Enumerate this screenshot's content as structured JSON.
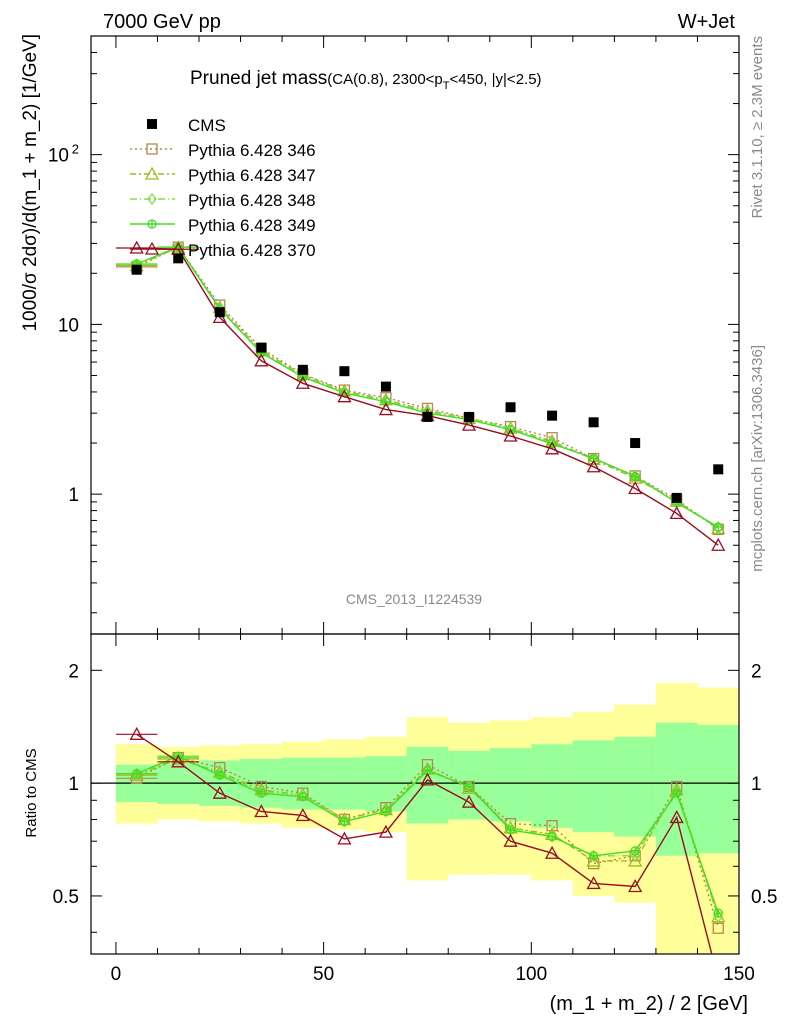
{
  "header": {
    "left": "7000 GeV pp",
    "right": "W+Jet"
  },
  "side_labels": {
    "rivet": "Rivet 3.1.10, ≥ 2.3M events",
    "mcplots": "mcplots.cern.ch [arXiv:1306.3436]"
  },
  "plot_title": {
    "main": "Pruned jet mass",
    "cut_a": "(CA(0.8), 2300<p",
    "cut_sub": "T",
    "cut_b": "<450, |y|<2.5)"
  },
  "watermark": "CMS_2013_I1224539",
  "chart_data": [
    {
      "type": "line",
      "panel": "main",
      "ylabel": "1000/σ 2dσ)/d(m_1 + m_2) [1/GeV]",
      "yscale": "log",
      "ylim": [
        0.15,
        500
      ],
      "xlim": [
        -6,
        150
      ],
      "yticks": [
        {
          "v": 1,
          "label": "1"
        },
        {
          "v": 10,
          "label": "10"
        },
        {
          "v": 100,
          "label": "10",
          "sup": "2"
        }
      ],
      "xticks": [
        0,
        50,
        100,
        150
      ],
      "legend_position": "top-left",
      "x": [
        5,
        15,
        25,
        35,
        45,
        55,
        65,
        75,
        85,
        95,
        105,
        115,
        125,
        135,
        145
      ],
      "data": {
        "name": "CMS",
        "color": "#000000",
        "values": [
          21.0,
          24.5,
          11.8,
          7.3,
          5.4,
          5.3,
          4.3,
          2.85,
          2.85,
          3.25,
          2.9,
          2.65,
          2.0,
          0.95,
          1.4
        ]
      },
      "series": [
        {
          "name": "Pythia 6.428 346",
          "color": "#b8864f",
          "marker": "square",
          "dash": "2,3",
          "values": [
            21.8,
            28.5,
            13.0,
            7.2,
            5.1,
            4.1,
            3.7,
            3.2,
            2.8,
            2.5,
            2.15,
            1.62,
            1.28,
            0.93,
            0.62
          ]
        },
        {
          "name": "Pythia 6.428 347",
          "color": "#9cbb1e",
          "marker": "triangle",
          "dash": "6,3,2,3",
          "values": [
            22.2,
            28.4,
            12.6,
            7.0,
            5.05,
            4.05,
            3.6,
            3.1,
            2.8,
            2.45,
            2.05,
            1.6,
            1.24,
            0.91,
            0.63
          ]
        },
        {
          "name": "Pythia 6.428 348",
          "color": "#7fe040",
          "marker": "diamond",
          "dash": "7,3,1,3",
          "values": [
            22.6,
            28.5,
            12.4,
            6.9,
            5.0,
            4.0,
            3.55,
            3.05,
            2.8,
            2.45,
            2.0,
            1.62,
            1.28,
            0.9,
            0.63
          ]
        },
        {
          "name": "Pythia 6.428 349",
          "color": "#44dd22",
          "marker": "circleplus",
          "dash": "",
          "values": [
            22.7,
            28.6,
            12.3,
            6.8,
            4.9,
            3.95,
            3.5,
            3.0,
            2.75,
            2.4,
            1.98,
            1.63,
            1.27,
            0.89,
            0.64
          ]
        },
        {
          "name": "Pythia 6.428 370",
          "color": "#990e22",
          "marker": "triangle",
          "dash": "",
          "values": [
            28.2,
            27.7,
            11.0,
            6.1,
            4.5,
            3.75,
            3.15,
            2.9,
            2.55,
            2.2,
            1.85,
            1.45,
            1.08,
            0.77,
            0.5
          ]
        }
      ]
    },
    {
      "type": "line",
      "panel": "ratio",
      "ylabel": "Ratio to CMS",
      "yscale": "log",
      "ylim": [
        0.35,
        2.5
      ],
      "xlim": [
        -6,
        150
      ],
      "xlabel": "(m_1 + m_2) / 2 [GeV]",
      "yticks": [
        {
          "v": 0.5,
          "label": "0.5"
        },
        {
          "v": 1,
          "label": "1"
        },
        {
          "v": 2,
          "label": "2"
        }
      ],
      "xticks": [
        0,
        50,
        100,
        150
      ],
      "x": [
        5,
        15,
        25,
        35,
        45,
        55,
        65,
        75,
        85,
        95,
        105,
        115,
        125,
        135,
        145
      ],
      "band_edges": [
        0,
        10,
        20,
        30,
        40,
        50,
        60,
        70,
        80,
        90,
        100,
        110,
        120,
        130,
        140,
        150
      ],
      "band_inner": [
        [
          0.89,
          1.12
        ],
        [
          0.88,
          1.13
        ],
        [
          0.87,
          1.15
        ],
        [
          0.86,
          1.16
        ],
        [
          0.85,
          1.17
        ],
        [
          0.85,
          1.17
        ],
        [
          0.84,
          1.18
        ],
        [
          0.78,
          1.25
        ],
        [
          0.8,
          1.22
        ],
        [
          0.79,
          1.24
        ],
        [
          0.76,
          1.27
        ],
        [
          0.74,
          1.3
        ],
        [
          0.72,
          1.33
        ],
        [
          0.64,
          1.45
        ],
        [
          0.65,
          1.43
        ]
      ],
      "band_outer": [
        [
          0.78,
          1.27
        ],
        [
          0.8,
          1.25
        ],
        [
          0.79,
          1.26
        ],
        [
          0.78,
          1.27
        ],
        [
          0.76,
          1.29
        ],
        [
          0.75,
          1.31
        ],
        [
          0.74,
          1.33
        ],
        [
          0.55,
          1.5
        ],
        [
          0.57,
          1.45
        ],
        [
          0.57,
          1.47
        ],
        [
          0.55,
          1.5
        ],
        [
          0.5,
          1.55
        ],
        [
          0.48,
          1.62
        ],
        [
          0.3,
          1.85
        ],
        [
          0.3,
          1.8
        ]
      ],
      "band_colors": {
        "inner": "#99ff99",
        "outer": "#ffff99"
      },
      "series": [
        {
          "name": "Pythia 6.428 346",
          "color": "#b8864f",
          "marker": "square",
          "dash": "2,3",
          "values": [
            1.03,
            1.17,
            1.1,
            0.98,
            0.94,
            0.8,
            0.86,
            1.12,
            0.98,
            0.78,
            0.77,
            0.61,
            0.64,
            0.98,
            0.41
          ]
        },
        {
          "name": "Pythia 6.428 347",
          "color": "#9cbb1e",
          "marker": "triangle",
          "dash": "6,3,2,3",
          "values": [
            1.05,
            1.16,
            1.07,
            0.96,
            0.93,
            0.8,
            0.85,
            1.09,
            0.97,
            0.76,
            0.73,
            0.62,
            0.62,
            0.96,
            0.44
          ]
        },
        {
          "name": "Pythia 6.428 348",
          "color": "#7fe040",
          "marker": "diamond",
          "dash": "7,3,1,3",
          "values": [
            1.06,
            1.17,
            1.06,
            0.95,
            0.93,
            0.79,
            0.84,
            1.08,
            0.98,
            0.76,
            0.72,
            0.64,
            0.64,
            0.95,
            0.44
          ]
        },
        {
          "name": "Pythia 6.428 349",
          "color": "#44dd22",
          "marker": "circleplus",
          "dash": "",
          "values": [
            1.06,
            1.18,
            1.05,
            0.94,
            0.92,
            0.79,
            0.84,
            1.08,
            0.98,
            0.75,
            0.72,
            0.64,
            0.66,
            0.94,
            0.45
          ]
        },
        {
          "name": "Pythia 6.428 370",
          "color": "#990e22",
          "marker": "triangle",
          "dash": "",
          "values": [
            1.35,
            1.14,
            0.94,
            0.84,
            0.82,
            0.71,
            0.74,
            1.02,
            0.89,
            0.7,
            0.65,
            0.54,
            0.53,
            0.81,
            0.3
          ]
        }
      ]
    }
  ]
}
